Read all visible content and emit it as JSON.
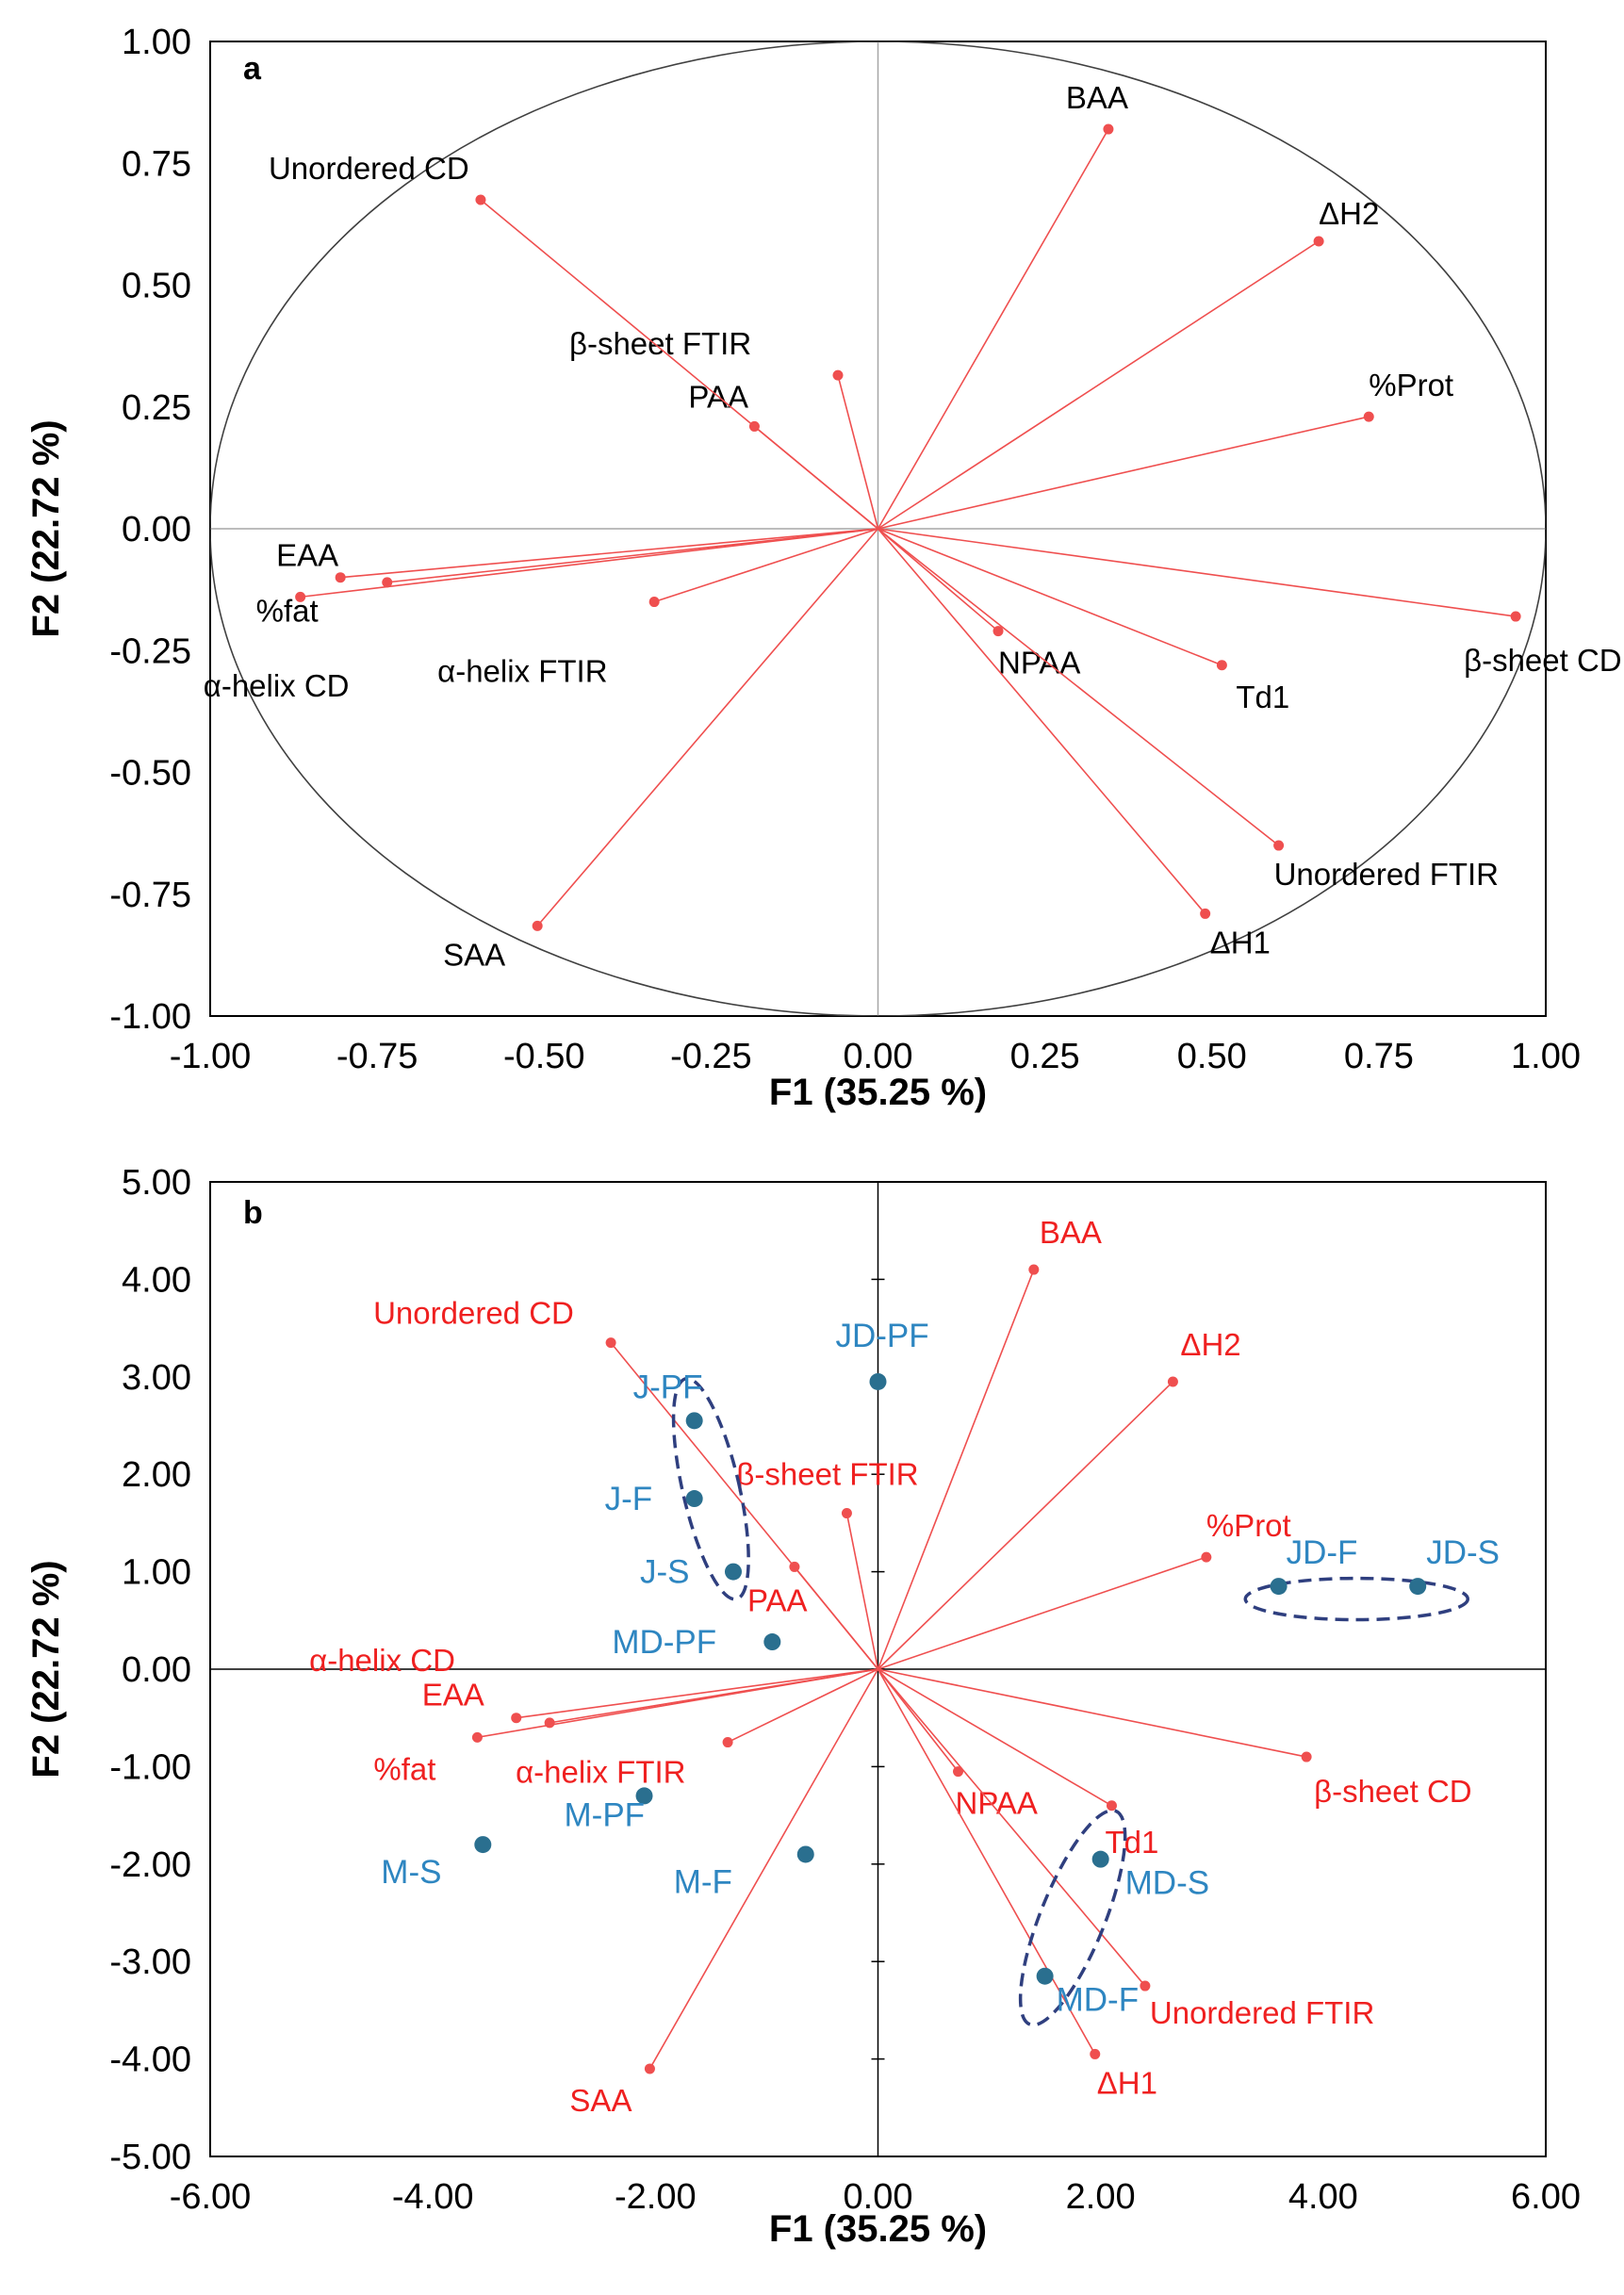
{
  "chart_data": [
    {
      "type": "scatter",
      "panel": "a",
      "title": "",
      "xlabel": "F1 (35.25 %)",
      "ylabel": "F2 (22.72 %)",
      "xlim": [
        -1.0,
        1.0
      ],
      "ylim": [
        -1.0,
        1.0
      ],
      "xticks": [
        "-1.00",
        "-0.75",
        "-0.50",
        "-0.25",
        "0.00",
        "0.25",
        "0.50",
        "0.75",
        "1.00"
      ],
      "yticks": [
        "1.00",
        "0.75",
        "0.50",
        "0.25",
        "0.00",
        "-0.25",
        "-0.50",
        "-0.75",
        "-1.00"
      ],
      "correlation_circle": true,
      "vector_color": "#ef4f4f",
      "label_color": "#000000",
      "vectors": [
        {
          "name": "BAA",
          "x": 0.345,
          "y": 0.82
        },
        {
          "name": "ΔH2",
          "x": 0.66,
          "y": 0.59
        },
        {
          "name": "%Prot",
          "x": 0.735,
          "y": 0.23
        },
        {
          "name": "β-sheet CD",
          "x": 0.955,
          "y": -0.18
        },
        {
          "name": "Td1",
          "x": 0.515,
          "y": -0.28
        },
        {
          "name": "NPAA",
          "x": 0.18,
          "y": -0.21
        },
        {
          "name": "Unordered FTIR",
          "x": 0.6,
          "y": -0.65
        },
        {
          "name": "ΔH1",
          "x": 0.49,
          "y": -0.79
        },
        {
          "name": "SAA",
          "x": -0.51,
          "y": -0.815
        },
        {
          "name": "α-helix FTIR",
          "x": -0.335,
          "y": -0.15
        },
        {
          "name": "α-helix CD",
          "x": -0.735,
          "y": -0.11
        },
        {
          "name": "%fat",
          "x": -0.865,
          "y": -0.14
        },
        {
          "name": "EAA",
          "x": -0.805,
          "y": -0.1
        },
        {
          "name": "PAA",
          "x": -0.185,
          "y": 0.21
        },
        {
          "name": "β-sheet FTIR",
          "x": -0.06,
          "y": 0.315
        },
        {
          "name": "Unordered CD",
          "x": -0.595,
          "y": 0.675
        }
      ]
    },
    {
      "type": "scatter",
      "panel": "b",
      "title": "",
      "xlabel": "F1 (35.25 %)",
      "ylabel": "F2 (22.72 %)",
      "xlim": [
        -6.0,
        6.0
      ],
      "ylim": [
        -5.0,
        5.0
      ],
      "xticks": [
        "-6.00",
        "-4.00",
        "-2.00",
        "0.00",
        "2.00",
        "4.00",
        "6.00"
      ],
      "yticks": [
        "5.00",
        "4.00",
        "3.00",
        "2.00",
        "1.00",
        "0.00",
        "-1.00",
        "-2.00",
        "-3.00",
        "-4.00",
        "-5.00"
      ],
      "vector_color": "#ef4f4f",
      "label_color": "#ef2020",
      "observation_color": "#2a6f8f",
      "observation_label_color": "#2e86c1",
      "ellipse_color": "#2f3f7f",
      "vectors": [
        {
          "name": "BAA",
          "x": 1.4,
          "y": 4.1
        },
        {
          "name": "ΔH2",
          "x": 2.65,
          "y": 2.95
        },
        {
          "name": "%Prot",
          "x": 2.95,
          "y": 1.15
        },
        {
          "name": "β-sheet CD",
          "x": 3.85,
          "y": -0.9
        },
        {
          "name": "Td1",
          "x": 2.1,
          "y": -1.4
        },
        {
          "name": "NPAA",
          "x": 0.72,
          "y": -1.05
        },
        {
          "name": "Unordered FTIR",
          "x": 2.4,
          "y": -3.25
        },
        {
          "name": "ΔH1",
          "x": 1.95,
          "y": -3.95
        },
        {
          "name": "SAA",
          "x": -2.05,
          "y": -4.1
        },
        {
          "name": "α-helix FTIR",
          "x": -1.35,
          "y": -0.75
        },
        {
          "name": "α-helix CD",
          "x": -2.95,
          "y": -0.55
        },
        {
          "name": "%fat",
          "x": -3.6,
          "y": -0.7
        },
        {
          "name": "EAA",
          "x": -3.25,
          "y": -0.5
        },
        {
          "name": "PAA",
          "x": -0.75,
          "y": 1.05
        },
        {
          "name": "β-sheet FTIR",
          "x": -0.28,
          "y": 1.6
        },
        {
          "name": "Unordered CD",
          "x": -2.4,
          "y": 3.35
        }
      ],
      "observations": [
        {
          "name": "JD-PF",
          "x": 0.0,
          "y": 2.95
        },
        {
          "name": "J-PF",
          "x": -1.65,
          "y": 2.55
        },
        {
          "name": "J-F",
          "x": -1.65,
          "y": 1.75
        },
        {
          "name": "J-S",
          "x": -1.3,
          "y": 1.0
        },
        {
          "name": "MD-PF",
          "x": -0.95,
          "y": 0.28
        },
        {
          "name": "JD-F",
          "x": 3.6,
          "y": 0.85
        },
        {
          "name": "JD-S",
          "x": 4.85,
          "y": 0.85
        },
        {
          "name": "M-PF",
          "x": -2.1,
          "y": -1.3
        },
        {
          "name": "M-S",
          "x": -3.55,
          "y": -1.8
        },
        {
          "name": "M-F",
          "x": -0.65,
          "y": -1.9
        },
        {
          "name": "MD-S",
          "x": 2.0,
          "y": -1.95
        },
        {
          "name": "MD-F",
          "x": 1.5,
          "y": -3.15
        }
      ]
    }
  ]
}
